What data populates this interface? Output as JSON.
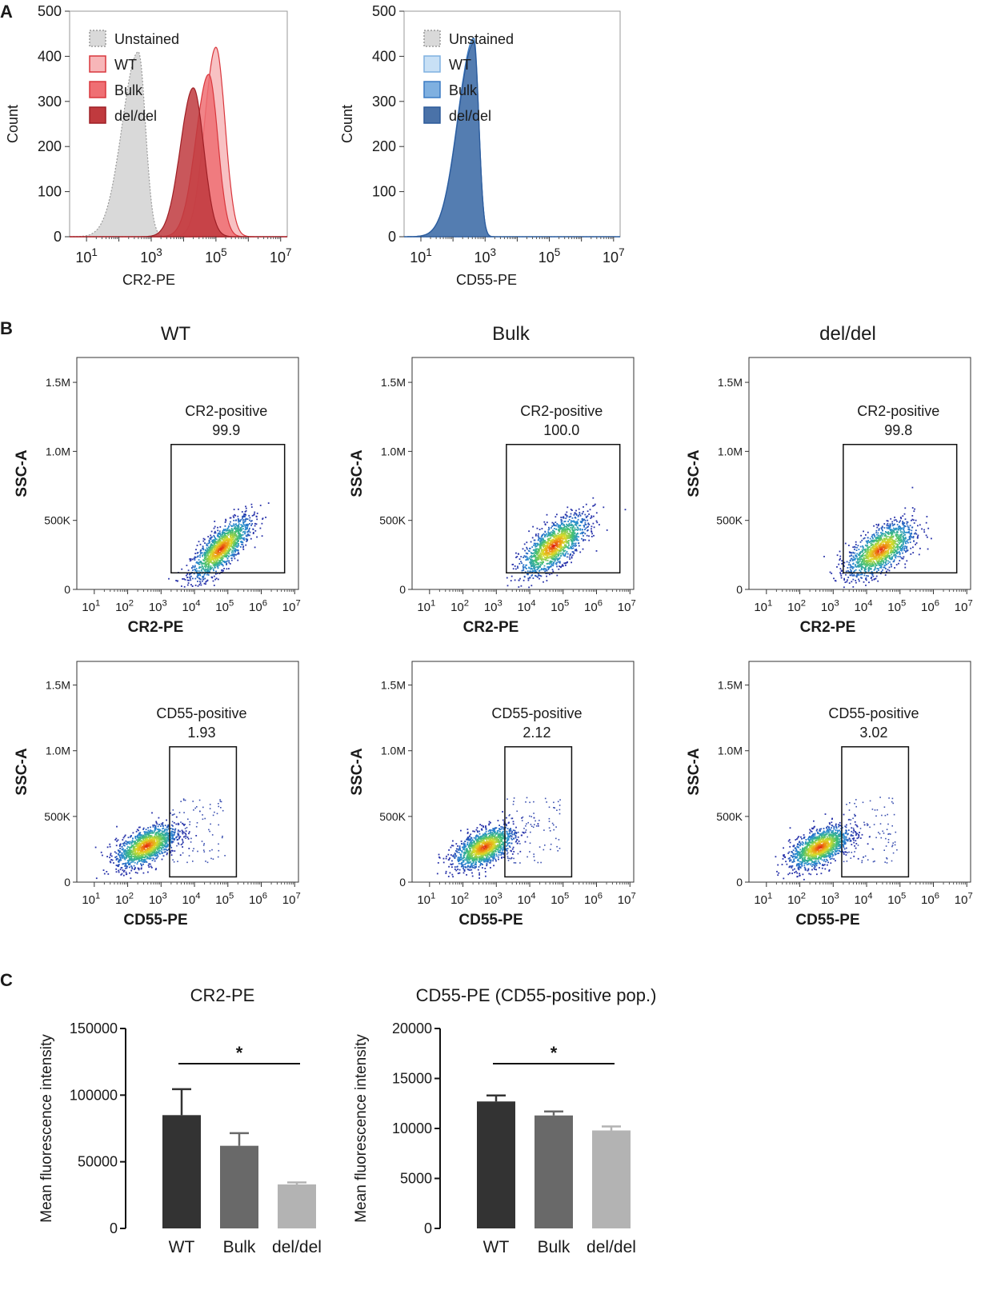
{
  "panels": {
    "a": "A",
    "b": "B",
    "c": "C"
  },
  "colors": {
    "unstained_fill": "#d9d9d9",
    "unstained_stroke": "#9a9a9a",
    "red_wt": "#f7b6b8",
    "red_bulk": "#ef6f73",
    "red_deldel": "#c03a3e",
    "red_stroke": "#d9363c",
    "blue_wt": "#c8e0f5",
    "blue_bulk": "#7fb0e0",
    "blue_deldel": "#4a72a8",
    "blue_stroke": "#2c5a9a",
    "bar_wt": "#333333",
    "bar_bulk": "#696969",
    "bar_deldel": "#b3b3b3"
  },
  "chart_data": [
    {
      "id": "hist-cr2",
      "type": "area",
      "title": "",
      "xlabel": "CR2-PE",
      "ylabel": "Count",
      "xscale": "log10",
      "xlim": [
        3,
        16000000
      ],
      "ylim": [
        0,
        500
      ],
      "yticks": [
        "0",
        "100",
        "200",
        "300",
        "400",
        "500"
      ],
      "xticks": [
        {
          "base": "10",
          "exp": "1",
          "v": 10
        },
        {
          "base": "10",
          "exp": "3",
          "v": 1000
        },
        {
          "base": "10",
          "exp": "5",
          "v": 100000
        },
        {
          "base": "10",
          "exp": "7",
          "v": 10000000
        }
      ],
      "legend": [
        "Unstained",
        "WT",
        "Bulk",
        "del/del"
      ],
      "legend_position": "top-left",
      "series": [
        {
          "name": "Unstained",
          "peak_x": 400,
          "peak_count": 410,
          "spread_left": 0.5,
          "spread_right": 0.22
        },
        {
          "name": "WT",
          "peak_x": 100000,
          "peak_count": 420,
          "spread_left": 0.35,
          "spread_right": 0.28
        },
        {
          "name": "Bulk",
          "peak_x": 60000,
          "peak_count": 360,
          "spread_left": 0.4,
          "spread_right": 0.28
        },
        {
          "name": "del/del",
          "peak_x": 20000,
          "peak_count": 330,
          "spread_left": 0.4,
          "spread_right": 0.32
        }
      ]
    },
    {
      "id": "hist-cd55",
      "type": "area",
      "title": "",
      "xlabel": "CD55-PE",
      "ylabel": "Count",
      "xscale": "log10",
      "xlim": [
        3,
        16000000
      ],
      "ylim": [
        0,
        500
      ],
      "yticks": [
        "0",
        "100",
        "200",
        "300",
        "400",
        "500"
      ],
      "xticks": [
        {
          "base": "10",
          "exp": "1",
          "v": 10
        },
        {
          "base": "10",
          "exp": "3",
          "v": 1000
        },
        {
          "base": "10",
          "exp": "5",
          "v": 100000
        },
        {
          "base": "10",
          "exp": "7",
          "v": 10000000
        }
      ],
      "legend": [
        "Unstained",
        "WT",
        "Bulk",
        "del/del"
      ],
      "legend_position": "top-left",
      "series": [
        {
          "name": "Unstained",
          "peak_x": 450,
          "peak_count": 420,
          "spread_left": 0.5,
          "spread_right": 0.15
        },
        {
          "name": "WT",
          "peak_x": 450,
          "peak_count": 435,
          "spread_left": 0.5,
          "spread_right": 0.15
        },
        {
          "name": "Bulk",
          "peak_x": 450,
          "peak_count": 440,
          "spread_left": 0.5,
          "spread_right": 0.15
        },
        {
          "name": "del/del",
          "peak_x": 450,
          "peak_count": 430,
          "spread_left": 0.5,
          "spread_right": 0.15
        }
      ]
    },
    {
      "id": "dot-cr2-wt",
      "type": "scatter",
      "title": "WT",
      "xlabel": "CR2-PE",
      "ylabel": "SSC-A",
      "gate_label": "CR2-positive",
      "gate_value": "99.9",
      "gate_x": [
        2000,
        5000000
      ],
      "gate_y": [
        120000,
        1050000
      ],
      "center_x": 60000,
      "center_y": 300000,
      "spread_x": 0.45,
      "spread_y": 120000,
      "tilt": 0.9
    },
    {
      "id": "dot-cr2-bulk",
      "type": "scatter",
      "title": "Bulk",
      "xlabel": "CR2-PE",
      "ylabel": "SSC-A",
      "gate_label": "CR2-positive",
      "gate_value": "100.0",
      "gate_x": [
        2000,
        5000000
      ],
      "gate_y": [
        120000,
        1050000
      ],
      "center_x": 50000,
      "center_y": 320000,
      "spread_x": 0.5,
      "spread_y": 130000,
      "tilt": 0.75
    },
    {
      "id": "dot-cr2-deldel",
      "type": "scatter",
      "title": "del/del",
      "xlabel": "CR2-PE",
      "ylabel": "SSC-A",
      "gate_label": "CR2-positive",
      "gate_value": "99.8",
      "gate_x": [
        2000,
        5000000
      ],
      "gate_y": [
        120000,
        1050000
      ],
      "center_x": 25000,
      "center_y": 290000,
      "spread_x": 0.5,
      "spread_y": 130000,
      "tilt": 0.6
    },
    {
      "id": "dot-cd55-wt",
      "type": "scatter",
      "title": "",
      "xlabel": "CD55-PE",
      "ylabel": "SSC-A",
      "gate_label": "CD55-positive",
      "gate_value": "1.93",
      "gate_x": [
        1800,
        180000
      ],
      "gate_y": [
        40000,
        1030000
      ],
      "center_x": 350,
      "center_y": 280000,
      "spread_x": 0.45,
      "spread_y": 110000,
      "tilt": 0.5
    },
    {
      "id": "dot-cd55-bulk",
      "type": "scatter",
      "title": "",
      "xlabel": "CD55-PE",
      "ylabel": "SSC-A",
      "gate_label": "CD55-positive",
      "gate_value": "2.12",
      "gate_x": [
        1800,
        180000
      ],
      "gate_y": [
        40000,
        1030000
      ],
      "center_x": 420,
      "center_y": 270000,
      "spread_x": 0.45,
      "spread_y": 110000,
      "tilt": 0.5
    },
    {
      "id": "dot-cd55-deldel",
      "type": "scatter",
      "title": "",
      "xlabel": "CD55-PE",
      "ylabel": "SSC-A",
      "gate_label": "CD55-positive",
      "gate_value": "3.02",
      "gate_x": [
        1800,
        180000
      ],
      "gate_y": [
        40000,
        1030000
      ],
      "center_x": 380,
      "center_y": 270000,
      "spread_x": 0.45,
      "spread_y": 110000,
      "tilt": 0.5
    },
    {
      "id": "bar-cr2",
      "type": "bar",
      "title": "CR2-PE",
      "xlabel": "",
      "ylabel": "Mean fluorescence intensity",
      "categories": [
        "WT",
        "Bulk",
        "del/del"
      ],
      "values": [
        85000,
        62000,
        33000
      ],
      "errors": [
        19500,
        9500,
        1500
      ],
      "ylim": [
        0,
        150000
      ],
      "yticks": [
        "0",
        "50000",
        "100000",
        "150000"
      ],
      "significance": "*"
    },
    {
      "id": "bar-cd55",
      "type": "bar",
      "title": "CD55-PE (CD55-positive pop.)",
      "xlabel": "",
      "ylabel": "Mean fluorescence intensity",
      "categories": [
        "WT",
        "Bulk",
        "del/del"
      ],
      "values": [
        12700,
        11300,
        9800
      ],
      "errors": [
        600,
        400,
        400
      ],
      "ylim": [
        0,
        20000
      ],
      "yticks": [
        "0",
        "5000",
        "10000",
        "15000",
        "20000"
      ],
      "significance": "*"
    }
  ],
  "dot_axes": {
    "yticks": [
      "0",
      "500K",
      "1.0M",
      "1.5M"
    ],
    "xticks": [
      {
        "base": "10",
        "exp": "1",
        "v": 10
      },
      {
        "base": "10",
        "exp": "2",
        "v": 100
      },
      {
        "base": "10",
        "exp": "3",
        "v": 1000
      },
      {
        "base": "10",
        "exp": "4",
        "v": 10000
      },
      {
        "base": "10",
        "exp": "5",
        "v": 100000
      },
      {
        "base": "10",
        "exp": "6",
        "v": 1000000
      },
      {
        "base": "10",
        "exp": "7",
        "v": 10000000
      }
    ]
  }
}
